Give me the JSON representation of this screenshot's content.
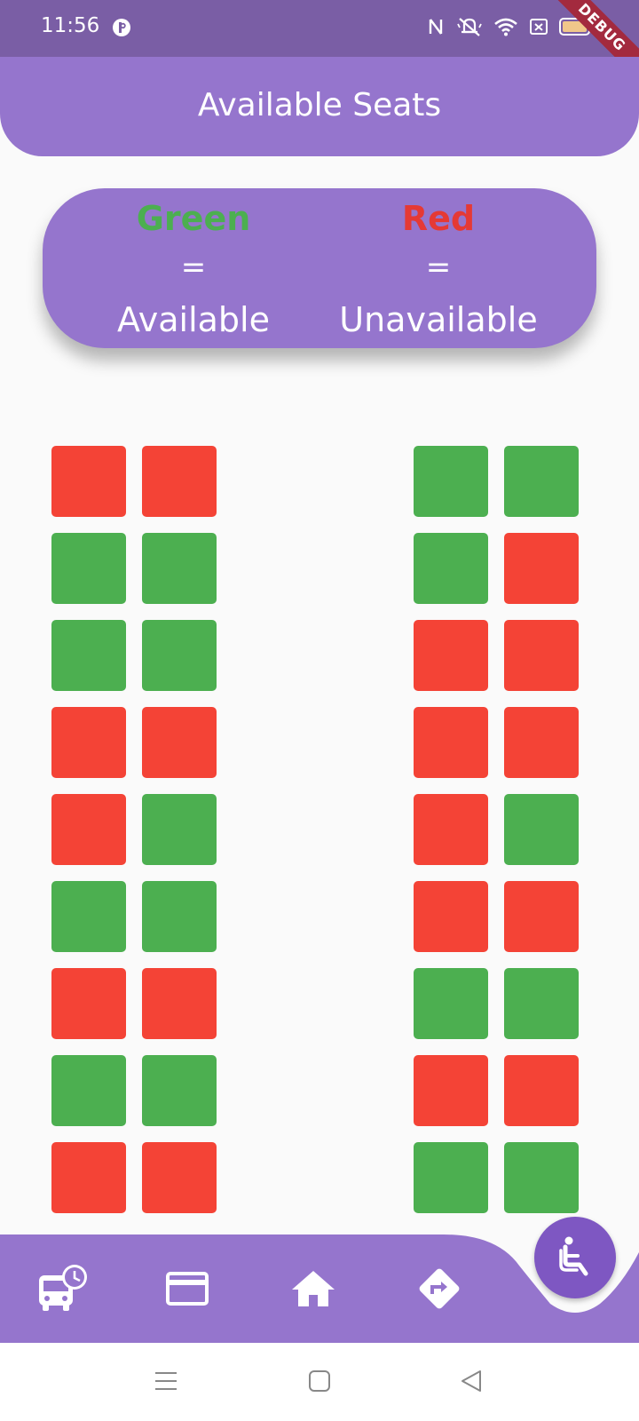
{
  "status_bar": {
    "time": "11:56",
    "battery": "94",
    "icons": [
      "app-p-icon",
      "nfc-icon",
      "mute-icon",
      "wifi-icon",
      "sim-x-icon",
      "battery-icon"
    ]
  },
  "debug_banner": "DEBUG",
  "app_bar": {
    "title": "Available Seats"
  },
  "legend": {
    "available": {
      "color_word": "Green",
      "equals": "=",
      "meaning": "Available",
      "color": "#4caf50"
    },
    "unavailable": {
      "color_word": "Red",
      "equals": "=",
      "meaning": "Unavailable",
      "color": "#e53935"
    }
  },
  "seat_colors": {
    "available": "#4caf50",
    "unavailable": "#f44336"
  },
  "seats": {
    "rows": [
      [
        "unavailable",
        "unavailable",
        "available",
        "available"
      ],
      [
        "available",
        "available",
        "available",
        "unavailable"
      ],
      [
        "available",
        "available",
        "unavailable",
        "unavailable"
      ],
      [
        "unavailable",
        "unavailable",
        "unavailable",
        "unavailable"
      ],
      [
        "unavailable",
        "available",
        "unavailable",
        "available"
      ],
      [
        "available",
        "available",
        "unavailable",
        "unavailable"
      ],
      [
        "unavailable",
        "unavailable",
        "available",
        "available"
      ],
      [
        "available",
        "available",
        "unavailable",
        "unavailable"
      ],
      [
        "unavailable",
        "unavailable",
        "available",
        "available"
      ]
    ]
  },
  "bottom_nav": {
    "items": [
      {
        "icon": "bus-schedule-icon"
      },
      {
        "icon": "card-icon"
      },
      {
        "icon": "home-icon"
      },
      {
        "icon": "directions-icon"
      }
    ],
    "fab_icon": "seat-icon"
  },
  "system_nav": [
    "menu-icon",
    "home-square-icon",
    "back-triangle-icon"
  ]
}
